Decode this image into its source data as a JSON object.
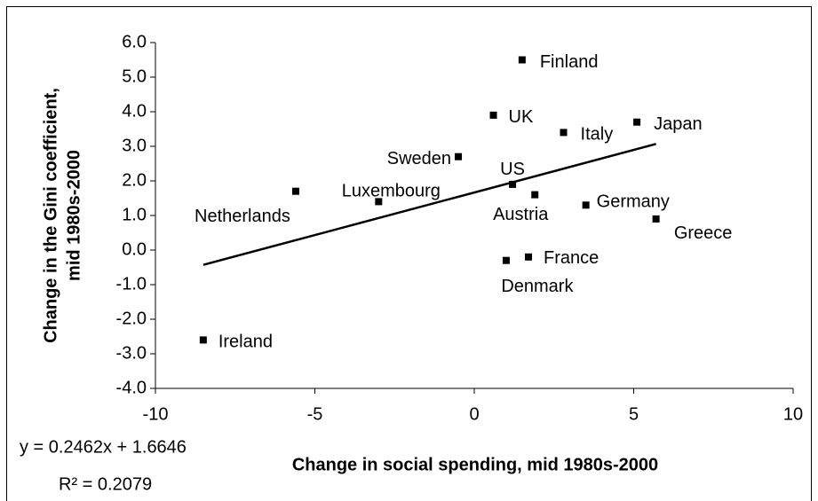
{
  "chart_data": {
    "type": "scatter",
    "xlabel": "Change in social spending, mid 1980s-2000",
    "ylabel": [
      "Change in the Gini coefficient,",
      "mid 1980s-2000"
    ],
    "xlim": [
      -10,
      10
    ],
    "xticks": [
      -10,
      -5,
      0,
      5,
      10
    ],
    "ylim": [
      -4,
      6
    ],
    "yticks": [
      {
        "value": -4,
        "label": "-4.0"
      },
      {
        "value": -3,
        "label": "-3.0"
      },
      {
        "value": -2,
        "label": "-2.0"
      },
      {
        "value": -1,
        "label": "-1.0"
      },
      {
        "value": 0,
        "label": "0.0"
      },
      {
        "value": 1,
        "label": "1.0"
      },
      {
        "value": 2,
        "label": "2.0"
      },
      {
        "value": 3,
        "label": "3.0"
      },
      {
        "value": 4,
        "label": "4.0"
      },
      {
        "value": 5,
        "label": "5.0"
      },
      {
        "value": 6,
        "label": "6.0"
      }
    ],
    "grid": false,
    "color": "#000000",
    "labels": [
      "Finland",
      "UK",
      "Italy",
      "Japan",
      "Sweden",
      "US",
      "Netherlands",
      "Luxembourg",
      "Austria",
      "Germany",
      "Greece",
      "Denmark",
      "France",
      "Ireland"
    ],
    "x": [
      1.5,
      0.6,
      2.8,
      5.1,
      -0.5,
      1.2,
      -5.6,
      -3.0,
      1.9,
      3.5,
      5.7,
      1.0,
      1.7,
      -8.5
    ],
    "y": [
      5.5,
      3.9,
      3.4,
      3.7,
      2.7,
      1.9,
      1.7,
      1.4,
      1.6,
      1.3,
      0.9,
      -0.3,
      -0.2,
      -2.6
    ],
    "trendline": {
      "slope": 0.2462,
      "intercept": 1.6646,
      "xrange": [
        -8.5,
        5.7
      ],
      "equation": "y = 0.2462x + 1.6646",
      "r_squared": "R² = 0.2079"
    }
  }
}
